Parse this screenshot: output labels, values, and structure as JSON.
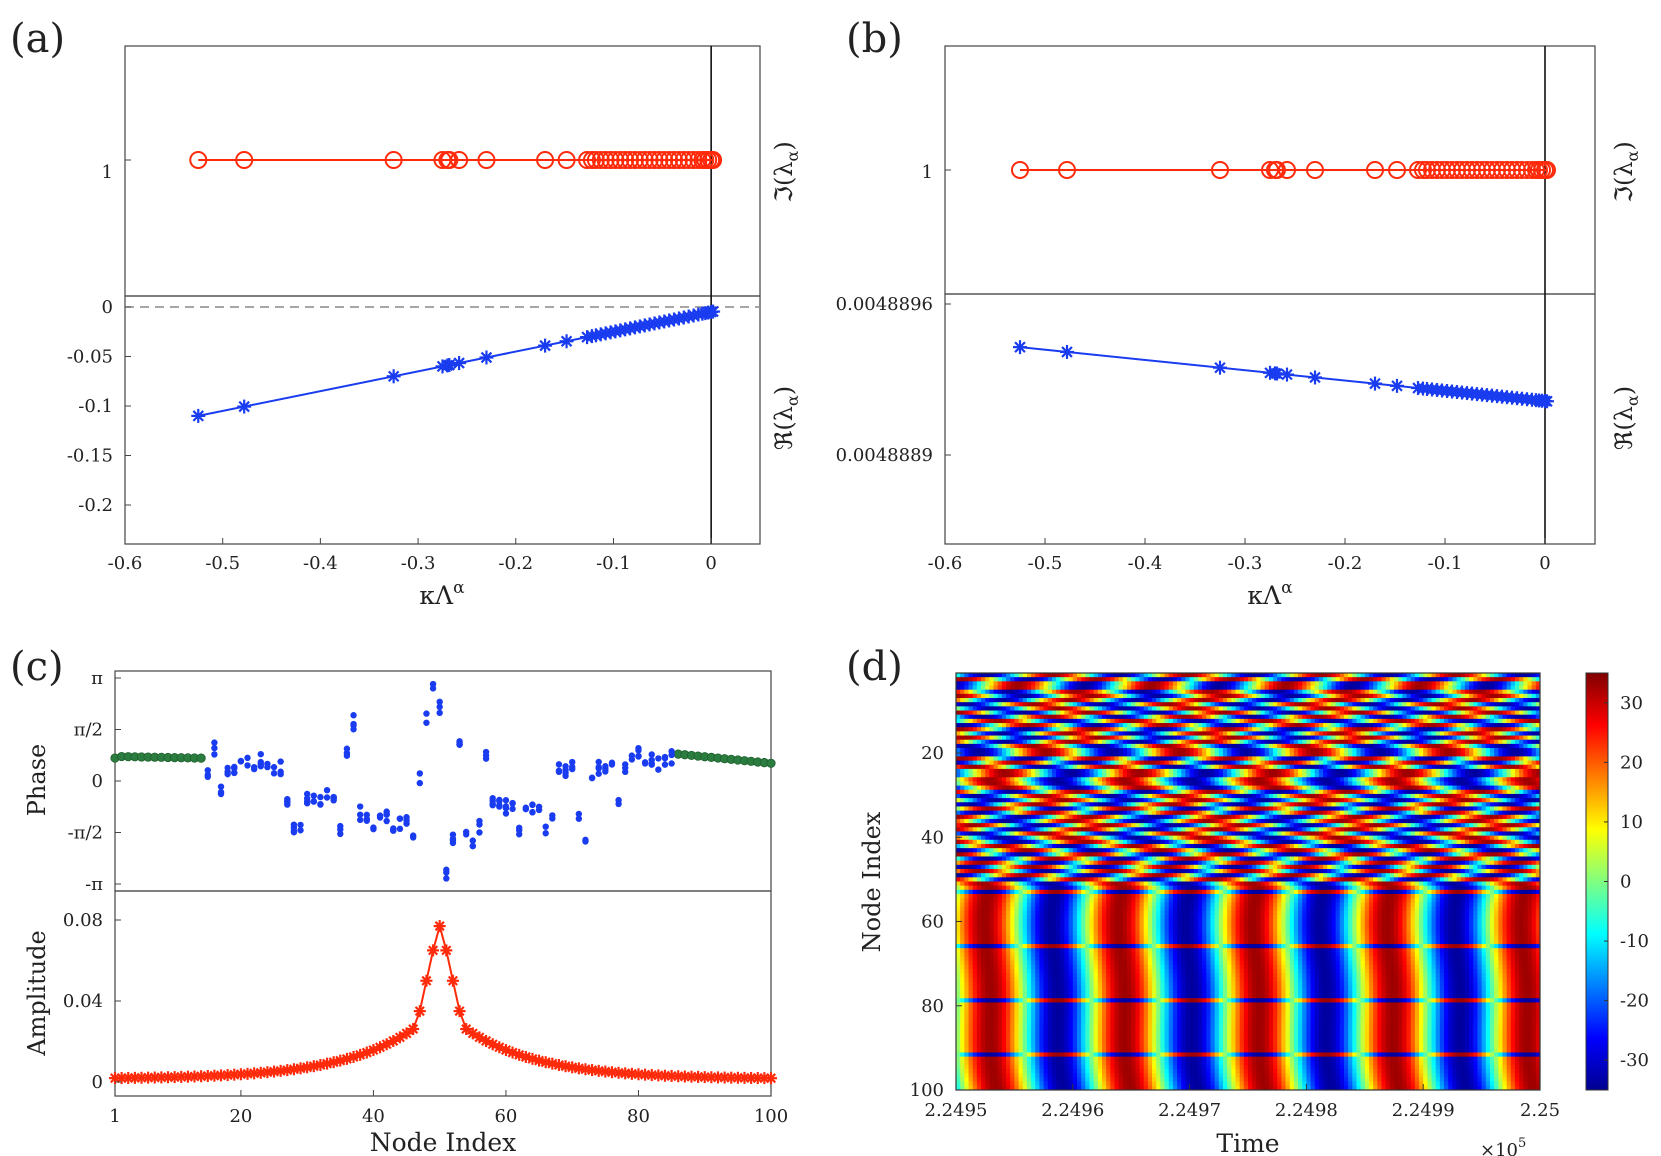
{
  "panel_labels": [
    "(a)",
    "(b)",
    "(c)",
    "(d)"
  ],
  "chart_data": [
    {
      "panel": "(a) top",
      "type": "line",
      "marker": "circle",
      "color": "#ff2a0a",
      "ylabel": "ℑ(λα)",
      "ylabel_position": "right",
      "yticks": [
        "1"
      ],
      "x": [
        -0.525,
        -0.478,
        -0.325,
        -0.275,
        -0.27,
        -0.268,
        -0.258,
        -0.23,
        -0.17,
        -0.148,
        -0.127,
        -0.122,
        -0.118,
        -0.113,
        -0.108,
        -0.103,
        -0.098,
        -0.093,
        -0.088,
        -0.083,
        -0.078,
        -0.073,
        -0.068,
        -0.063,
        -0.058,
        -0.053,
        -0.048,
        -0.043,
        -0.038,
        -0.033,
        -0.028,
        -0.023,
        -0.018,
        -0.013,
        -0.009,
        -0.006,
        -0.003,
        0.0,
        0.002
      ],
      "y_constant": 1,
      "vline_x": 0
    },
    {
      "panel": "(a) bottom",
      "type": "line",
      "marker": "asterisk",
      "color": "#1a3cf0",
      "xlabel": "κΛα",
      "ylabel": "ℜ(λα)",
      "ylabel_position": "right",
      "xlim": [
        -0.6,
        0.05
      ],
      "ylim": [
        -0.2,
        0.03
      ],
      "xticks": [
        "-0.6",
        "-0.5",
        "-0.4",
        "-0.3",
        "-0.2",
        "-0.1",
        "0"
      ],
      "yticks": [
        "0",
        "-0.05",
        "-0.1",
        "-0.15",
        "-0.2"
      ],
      "y_relation": "y = 0.2 * x - 0.005",
      "dashed_hline_y": 0,
      "vline_x": 0
    },
    {
      "panel": "(b) top",
      "type": "line",
      "marker": "circle",
      "color": "#ff2a0a",
      "ylabel": "ℑ(λα)",
      "ylabel_position": "right",
      "yticks": [
        "1"
      ],
      "y_constant": 1,
      "vline_x": 0
    },
    {
      "panel": "(b) bottom",
      "type": "line",
      "marker": "asterisk",
      "color": "#1a3cf0",
      "xlabel": "κΛα",
      "ylabel": "ℜ(λα)",
      "ylabel_position": "right",
      "xlim": [
        -0.6,
        0.05
      ],
      "yticks": [
        "0.0048896",
        "0.0048889"
      ],
      "y_range_note": "y decreases linearly from 0.0048894 at x=-0.525 to 0.00488915 at x=0",
      "xticks": [
        "-0.6",
        "-0.5",
        "-0.4",
        "-0.3",
        "-0.2",
        "-0.1",
        "0"
      ],
      "vline_x": 0
    },
    {
      "panel": "(c) top",
      "type": "scatter",
      "ylabel": "Phase",
      "yticks": [
        "π",
        "π/2",
        "0",
        "-π/2",
        "-π"
      ],
      "ylim": [
        -3.3,
        3.3
      ],
      "xlim": [
        1,
        100
      ],
      "series": [
        {
          "color": "#2b7d3f",
          "x_ranges": [
            [
              1,
              14
            ],
            [
              86,
              100
            ]
          ],
          "y_range": [
            0.47,
            0.77
          ]
        },
        {
          "color": "#1a3cf0",
          "x_range": [
            15,
            85
          ],
          "y_range": [
            -2.95,
            3.07
          ]
        }
      ]
    },
    {
      "panel": "(c) bottom",
      "type": "line",
      "marker": "asterisk",
      "color": "#ff2a0a",
      "xlabel": "Node Index",
      "ylabel": "Amplitude",
      "xlim": [
        1,
        100
      ],
      "ylim": [
        0,
        0.082
      ],
      "xticks": [
        "1",
        "20",
        "40",
        "60",
        "80",
        "100"
      ],
      "yticks": [
        "0.08",
        "0.04",
        "0"
      ],
      "peak": {
        "x": 50,
        "y": 0.077
      }
    },
    {
      "panel": "(d)",
      "type": "heatmap",
      "xlabel": "Time",
      "ylabel": "Node Index",
      "xticks": [
        "2.2495",
        "2.2496",
        "2.2497",
        "2.2498",
        "2.2499",
        "2.25"
      ],
      "x_multiplier": "×10",
      "x_multiplier_exp": "5",
      "yticks": [
        "20",
        "40",
        "60",
        "80",
        "100"
      ],
      "colorbar_ticks": [
        "30",
        "20",
        "10",
        "0",
        "-10",
        "-20",
        "-30"
      ],
      "colorbar_range": [
        -35,
        35
      ],
      "columns": 30
    }
  ]
}
